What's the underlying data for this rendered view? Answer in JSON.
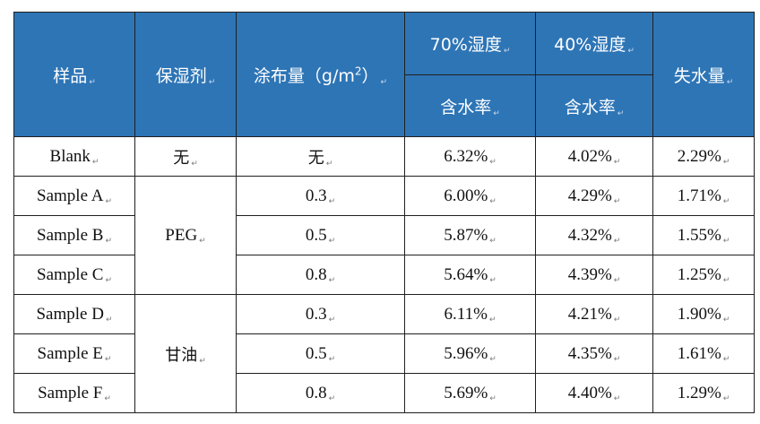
{
  "header": {
    "sample": "样品",
    "humectant": "保湿剂",
    "coating_prefix": "涂布量（g/m",
    "coating_sup": "2",
    "coating_suffix": "）",
    "h70": "70%湿度",
    "h40": "40%湿度",
    "water_loss": "失水量",
    "moisture_70": "含水率",
    "moisture_40": "含水率"
  },
  "para_mark": "↵",
  "colors": {
    "header_bg": "#2e75b6",
    "header_text": "#ffffff",
    "border": "#1f1f1f"
  },
  "rows": [
    {
      "sample": "Blank",
      "humectant": "无",
      "coating": "无",
      "h70": "6.32%",
      "h40": "4.02%",
      "loss": "2.29%"
    },
    {
      "sample": "Sample A",
      "humectant": "PEG",
      "coating": "0.3",
      "h70": "6.00%",
      "h40": "4.29%",
      "loss": "1.71%"
    },
    {
      "sample": "Sample B",
      "humectant": "",
      "coating": "0.5",
      "h70": "5.87%",
      "h40": "4.32%",
      "loss": "1.55%"
    },
    {
      "sample": "Sample C",
      "humectant": "",
      "coating": "0.8",
      "h70": "5.64%",
      "h40": "4.39%",
      "loss": "1.25%"
    },
    {
      "sample": "Sample D",
      "humectant": "甘油",
      "coating": "0.3",
      "h70": "6.11%",
      "h40": "4.21%",
      "loss": "1.90%"
    },
    {
      "sample": "Sample E",
      "humectant": "",
      "coating": "0.5",
      "h70": "5.96%",
      "h40": "4.35%",
      "loss": "1.61%"
    },
    {
      "sample": "Sample F",
      "humectant": "",
      "coating": "0.8",
      "h70": "5.69%",
      "h40": "4.40%",
      "loss": "1.29%"
    }
  ]
}
